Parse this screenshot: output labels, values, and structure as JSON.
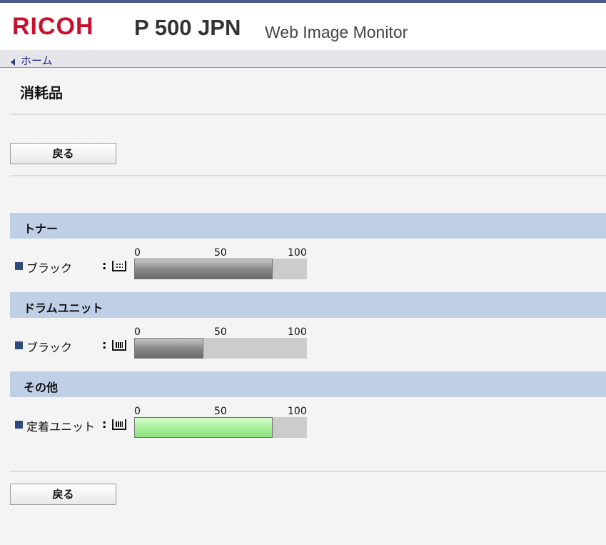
{
  "header": {
    "brand": "RICOH",
    "model": "P 500 JPN",
    "product": "Web Image Monitor"
  },
  "breadcrumb": {
    "home": "ホーム"
  },
  "page": {
    "title": "消耗品",
    "back_label": "戻る"
  },
  "scale": {
    "min": "0",
    "mid": "50",
    "max": "100"
  },
  "sections": [
    {
      "title": "トナー",
      "items": [
        {
          "label": "ブラック",
          "colon": ":",
          "icon": "toner-icon",
          "level_percent": 80,
          "color": "#808080"
        }
      ]
    },
    {
      "title": "ドラムユニット",
      "items": [
        {
          "label": "ブラック",
          "colon": ":",
          "icon": "drum-unit-icon",
          "level_percent": 40,
          "color": "#808080"
        }
      ]
    },
    {
      "title": "その他",
      "items": [
        {
          "label": "定着ユニット",
          "colon": ":",
          "icon": "fuser-unit-icon",
          "level_percent": 80,
          "color": "#a8f09a"
        }
      ]
    }
  ]
}
